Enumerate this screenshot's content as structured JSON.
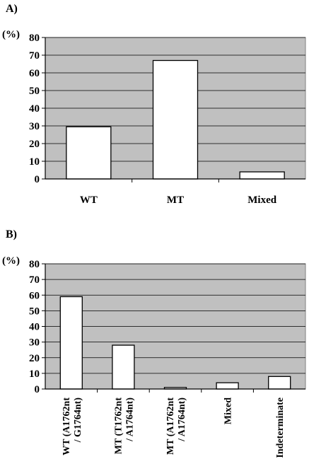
{
  "chart_data": [
    {
      "panel_label": "A)",
      "type": "bar",
      "ylabel": "(%)",
      "ylim": [
        0,
        80
      ],
      "yticks": [
        0,
        10,
        20,
        30,
        40,
        50,
        60,
        70,
        80
      ],
      "categories": [
        "WT",
        "MT",
        "Mixed"
      ],
      "values": [
        29.5,
        67,
        4
      ],
      "grid": true,
      "plot_background": "#c0c0c0",
      "bar_color": "#ffffff"
    },
    {
      "panel_label": "B)",
      "type": "bar",
      "ylabel": "(%)",
      "ylim": [
        0,
        80
      ],
      "yticks": [
        0,
        10,
        20,
        30,
        40,
        50,
        60,
        70,
        80
      ],
      "categories": [
        "WT (A1762nt / G1764nt)",
        "MT (T1762nt / A1764nt)",
        "MT (A1762nt / A1764nt)",
        "Mixed",
        "Indeterminate"
      ],
      "values": [
        59,
        28,
        1,
        4,
        8
      ],
      "grid": true,
      "plot_background": "#c0c0c0",
      "bar_color": "#ffffff"
    }
  ]
}
